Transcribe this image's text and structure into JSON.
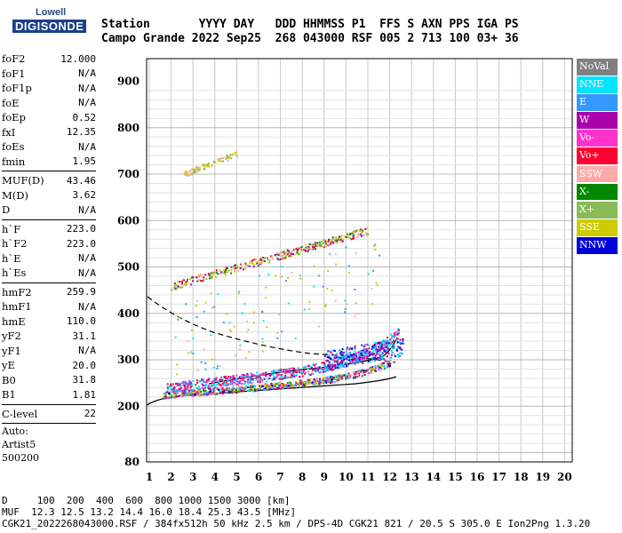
{
  "logo": {
    "line1": "Lowell",
    "line2": "DIGISONDE"
  },
  "header": {
    "row1": "Station       YYYY DAY   DDD HHMMSS P1  FFS S AXN PPS IGA PS",
    "row2": "Campo Grande 2022 Sep25  268 043000 RSF 005 2 713 100 03+ 36"
  },
  "params": {
    "group1": [
      {
        "label": "foF2",
        "value": "12.000"
      },
      {
        "label": "foF1",
        "value": "N/A"
      },
      {
        "label": "foF1p",
        "value": "N/A"
      },
      {
        "label": "foE",
        "value": "N/A"
      },
      {
        "label": "foEp",
        "value": "0.52"
      },
      {
        "label": "fxI",
        "value": "12.35"
      },
      {
        "label": "foEs",
        "value": "N/A"
      },
      {
        "label": "fmin",
        "value": "1.95"
      }
    ],
    "group2": [
      {
        "label": "MUF(D)",
        "value": "43.46"
      },
      {
        "label": "M(D)",
        "value": "3.62"
      },
      {
        "label": "D",
        "value": "N/A"
      }
    ],
    "group3": [
      {
        "label": "h`F",
        "value": "223.0"
      },
      {
        "label": "h`F2",
        "value": "223.0"
      },
      {
        "label": "h`E",
        "value": "N/A"
      },
      {
        "label": "h`Es",
        "value": "N/A"
      }
    ],
    "group4": [
      {
        "label": "hmF2",
        "value": "259.9"
      },
      {
        "label": "hmF1",
        "value": "N/A"
      },
      {
        "label": "hmE",
        "value": "110.0"
      },
      {
        "label": "yF2",
        "value": "31.1"
      },
      {
        "label": "yF1",
        "value": "N/A"
      },
      {
        "label": "yE",
        "value": "20.0"
      },
      {
        "label": "B0",
        "value": "31.8"
      },
      {
        "label": "B1",
        "value": "1.81"
      }
    ],
    "group5": [
      {
        "label": "C-level",
        "value": "22"
      }
    ],
    "extra": [
      "Auto:",
      "Artist5",
      "500200"
    ]
  },
  "legend": [
    {
      "label": "NoVal",
      "color": "#808080"
    },
    {
      "label": "NNE",
      "color": "#00e5ff"
    },
    {
      "label": "E",
      "color": "#3399ff"
    },
    {
      "label": "W",
      "color": "#aa00aa"
    },
    {
      "label": "Vo-",
      "color": "#ff33cc"
    },
    {
      "label": "Vo+",
      "color": "#ff0033"
    },
    {
      "label": "SSW",
      "color": "#ffaaaa"
    },
    {
      "label": "X-",
      "color": "#008800"
    },
    {
      "label": "X+",
      "color": "#88bb55"
    },
    {
      "label": "SSE",
      "color": "#cccc00"
    },
    {
      "label": "NNW",
      "color": "#0000dd"
    }
  ],
  "axes": {
    "x_ticks": [
      "1",
      "2",
      "3",
      "4",
      "5",
      "6",
      "7",
      "8",
      "9",
      "10",
      "11",
      "12",
      "13",
      "14",
      "15",
      "16",
      "17",
      "18",
      "19",
      "20"
    ],
    "y_ticks": [
      "80",
      "200",
      "300",
      "400",
      "500",
      "600",
      "700",
      "800",
      "900"
    ]
  },
  "footer": {
    "line1": "D     100  200  400  600  800 1000 1500 3000 [km]",
    "line2": "MUF  12.3 12.5 13.2 14.4 16.0 18.4 25.3 43.5 [MHz]",
    "line3": "CGK21_2022268043000.RSF / 384fx512h 50 kHz 2.5 km / DPS-4D CGK21 821 / 20.5 S 305.0 E Ion2Png 1.3.20"
  }
}
